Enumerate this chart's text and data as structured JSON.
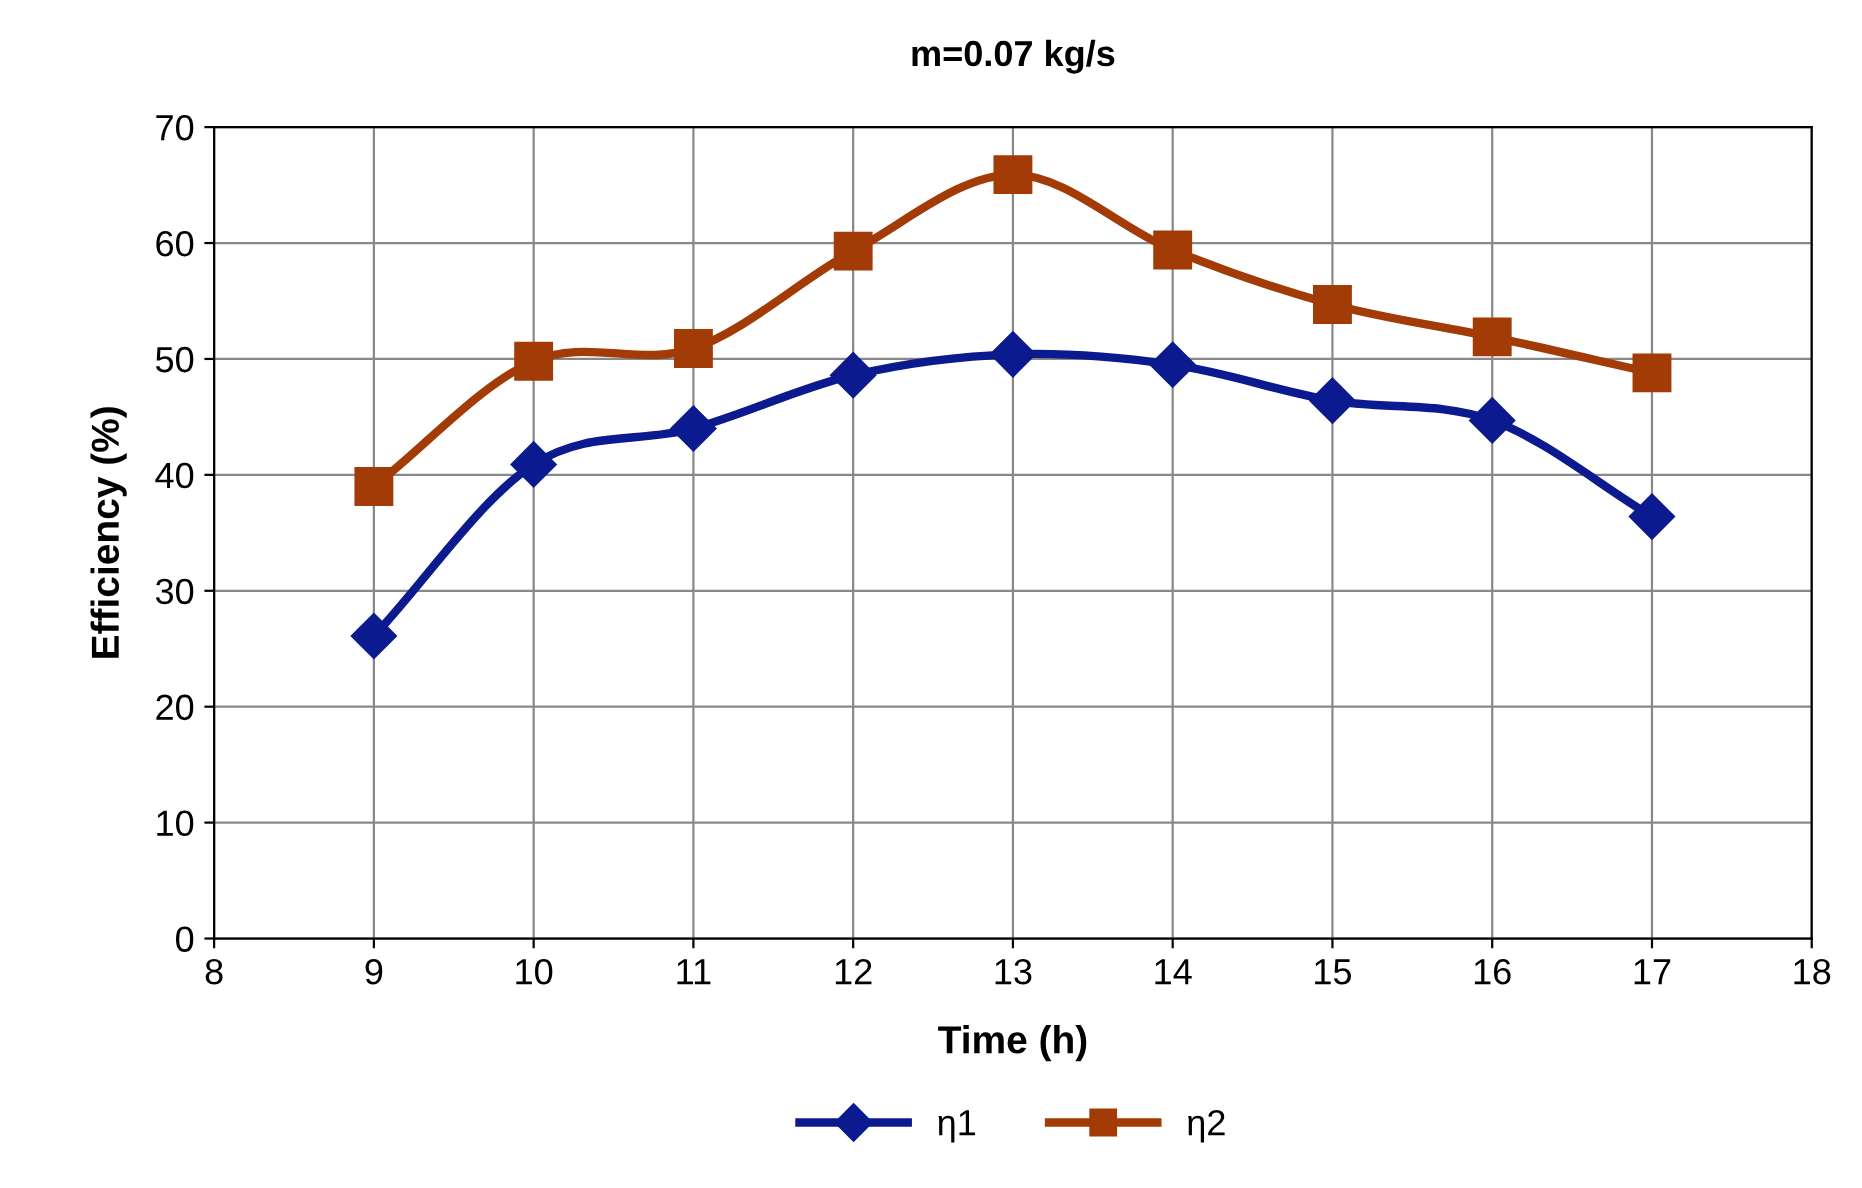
{
  "chart_data": {
    "type": "line",
    "title": "m=0.07 kg/s",
    "xlabel": "Time (h)",
    "ylabel": "Efficiency (%)",
    "x": [
      9,
      10,
      11,
      12,
      13,
      14,
      15,
      16,
      17
    ],
    "series": [
      {
        "name": "η1",
        "color": "#0b1a8f",
        "marker": "diamond",
        "values": [
          26.1,
          40.9,
          44.0,
          48.6,
          50.4,
          49.5,
          46.4,
          44.7,
          36.4
        ]
      },
      {
        "name": "η2",
        "color": "#a33b06",
        "marker": "square",
        "values": [
          39.0,
          49.8,
          50.9,
          59.3,
          65.9,
          59.4,
          54.7,
          51.9,
          48.8
        ]
      }
    ],
    "xlim": [
      8,
      18
    ],
    "xticks": [
      8,
      9,
      10,
      11,
      12,
      13,
      14,
      15,
      16,
      17,
      18
    ],
    "ylim": [
      0,
      70
    ],
    "yticks": [
      0,
      10,
      20,
      30,
      40,
      50,
      60,
      70
    ],
    "grid": true,
    "legend": "bottom",
    "line_style": "solid"
  }
}
